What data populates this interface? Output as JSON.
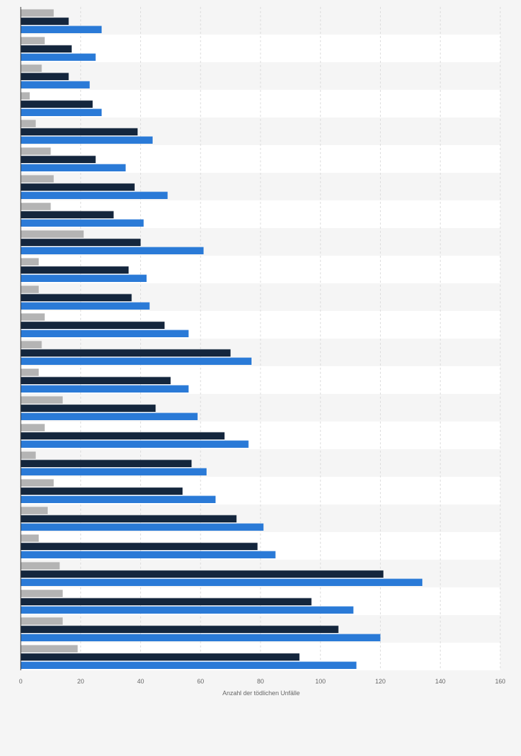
{
  "chart_data": {
    "type": "bar",
    "orientation": "horizontal",
    "categories": [
      "",
      "",
      "",
      "",
      "",
      "",
      "",
      "",
      "",
      "",
      "",
      "",
      "",
      "",
      "",
      "",
      "",
      "",
      "",
      "",
      "",
      "",
      "",
      ""
    ],
    "series": [
      {
        "color": "#b4b4b4",
        "values": [
          11,
          8,
          7,
          3,
          5,
          10,
          11,
          10,
          21,
          6,
          6,
          8,
          7,
          6,
          14,
          8,
          5,
          11,
          9,
          6,
          13,
          14,
          14,
          19
        ]
      },
      {
        "color": "#14263d",
        "values": [
          16,
          17,
          16,
          24,
          39,
          25,
          38,
          31,
          40,
          36,
          37,
          48,
          70,
          50,
          45,
          68,
          57,
          54,
          72,
          79,
          121,
          97,
          106,
          93
        ]
      },
      {
        "color": "#2a7ad7",
        "values": [
          27,
          25,
          23,
          27,
          44,
          35,
          49,
          41,
          61,
          42,
          43,
          56,
          77,
          56,
          59,
          76,
          62,
          65,
          81,
          85,
          134,
          111,
          120,
          112
        ]
      }
    ],
    "xlim": [
      0,
      160
    ],
    "xticks": [
      0,
      20,
      40,
      60,
      80,
      100,
      120,
      140,
      160
    ],
    "xtick_labels": [
      "0",
      "20",
      "40",
      "60",
      "80",
      "100",
      "120",
      "140",
      "160"
    ],
    "xlabel": "Anzahl der tödlichen Unfälle",
    "ylabel": "",
    "title": "",
    "grid": true,
    "row_band_colors": [
      "#f5f5f5",
      "#ffffff"
    ],
    "grid_color": "#dcdcdc"
  }
}
